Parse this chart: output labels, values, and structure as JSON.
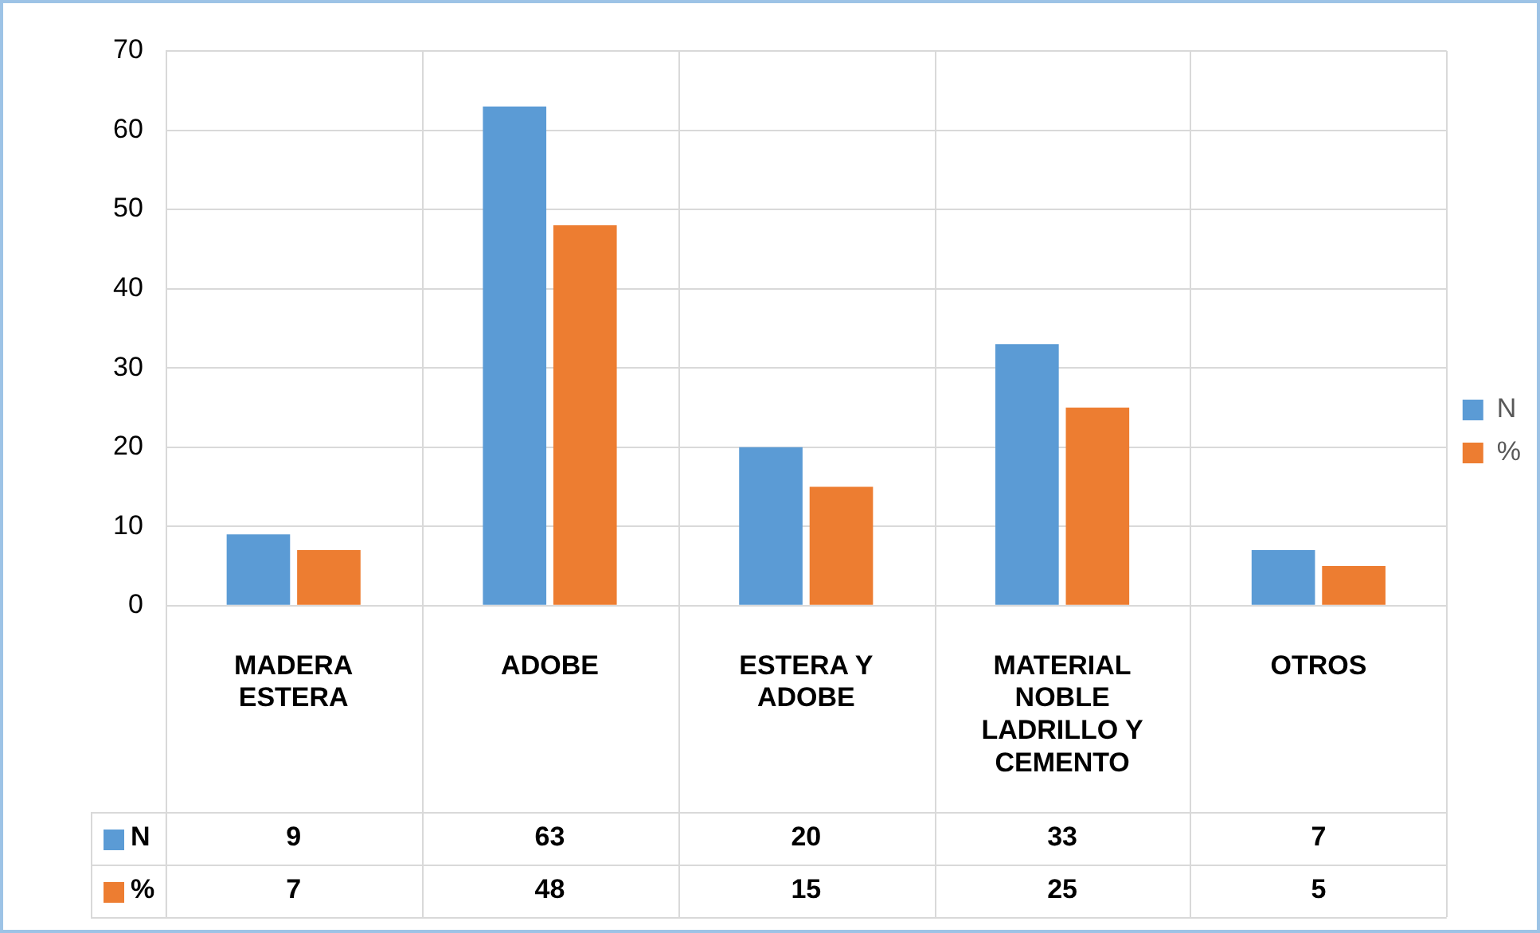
{
  "chart_data": {
    "type": "bar",
    "categories": [
      "MADERA ESTERA",
      "ADOBE",
      "ESTERA Y ADOBE",
      "MATERIAL NOBLE LADRILLO Y CEMENTO",
      "OTROS"
    ],
    "series": [
      {
        "name": "N",
        "color": "#5b9bd5",
        "values": [
          9,
          63,
          20,
          33,
          7
        ]
      },
      {
        "name": "%",
        "color": "#ed7d31",
        "values": [
          7,
          48,
          15,
          25,
          5
        ]
      }
    ],
    "ylim": [
      0,
      70
    ],
    "yticks": [
      0,
      10,
      20,
      30,
      40,
      50,
      60,
      70
    ],
    "grid": true,
    "legend": "right",
    "data_labels": true
  }
}
